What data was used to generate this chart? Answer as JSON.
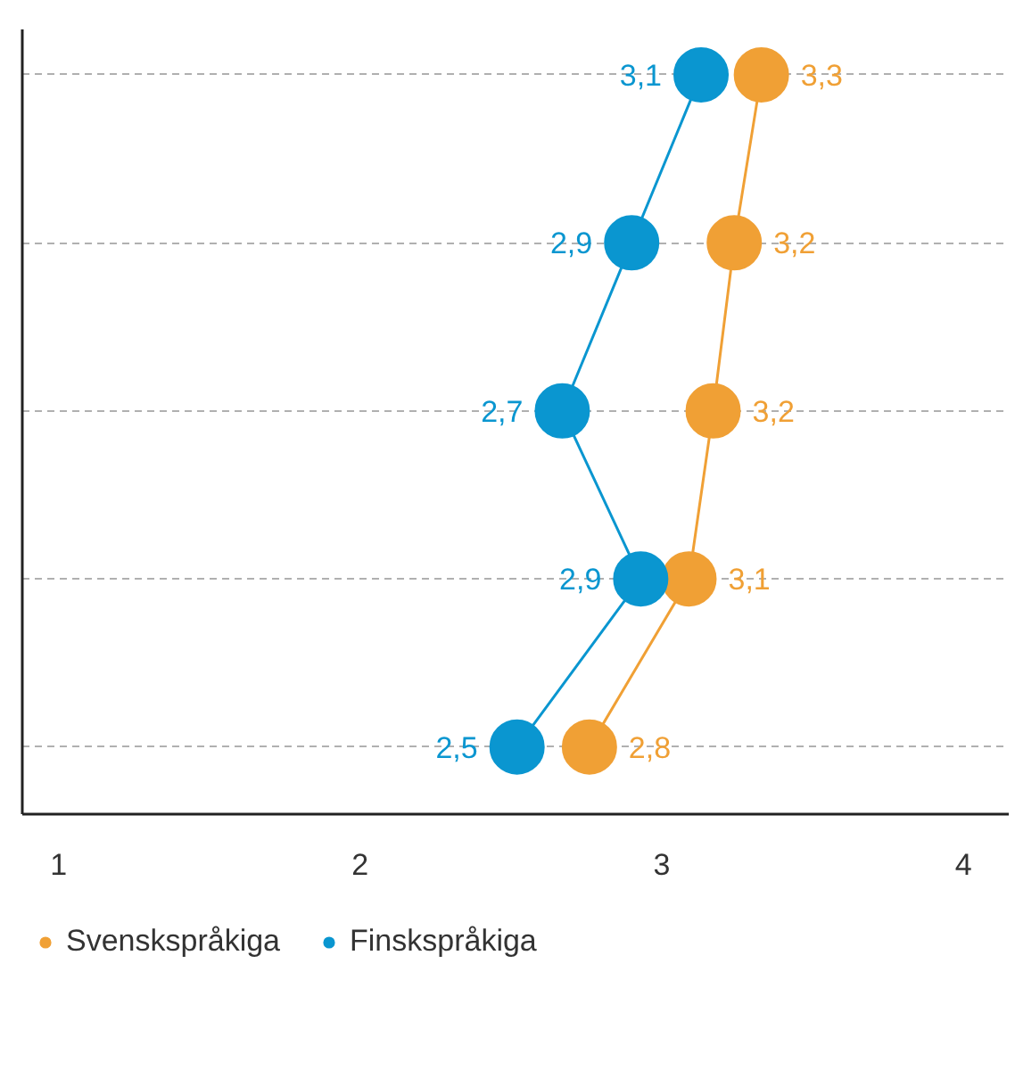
{
  "chart_data": {
    "type": "line",
    "orientation": "horizontal",
    "categories": [
      null,
      null,
      null,
      null,
      null
    ],
    "series": [
      {
        "name": "Svenskspråkiga",
        "color": "#f0a035",
        "values": [
          3.33,
          3.24,
          3.17,
          3.09,
          2.76
        ],
        "value_labels": [
          "3,3",
          "3,2",
          "3,2",
          "3,1",
          "2,8"
        ]
      },
      {
        "name": "Finskspråkiga",
        "color": "#0a96d0",
        "values": [
          3.13,
          2.9,
          2.67,
          2.93,
          2.52
        ],
        "value_labels": [
          "3,1",
          "2,9",
          "2,7",
          "2,9",
          "2,5"
        ]
      }
    ],
    "xlim": [
      0.88,
      4.15
    ],
    "xticks": [
      1,
      2,
      3,
      4
    ],
    "grid": "y",
    "legend": "bottom",
    "marker": "circle",
    "line_style": "solid",
    "tick_labels": "x"
  }
}
